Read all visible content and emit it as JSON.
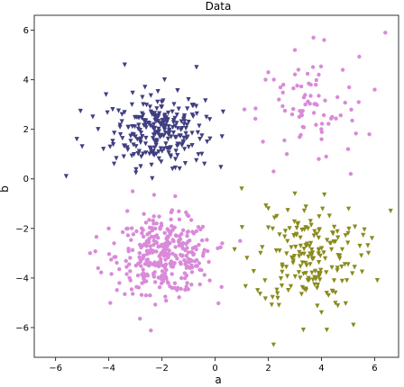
{
  "chart_data": {
    "type": "scatter",
    "title": "Data",
    "xlabel": "a",
    "ylabel": "b",
    "xlim": [
      -6.8,
      6.9
    ],
    "ylim": [
      -7.2,
      6.6
    ],
    "xticks": [
      -6,
      -4,
      -2,
      0,
      2,
      4,
      6
    ],
    "yticks": [
      -6,
      -4,
      -2,
      0,
      2,
      4,
      6
    ],
    "xtick_labels": [
      "−6",
      "−4",
      "−2",
      "0",
      "2",
      "4",
      "6"
    ],
    "ytick_labels": [
      "−6",
      "−4",
      "−2",
      "0",
      "2",
      "4",
      "6"
    ],
    "grid": false,
    "series": [
      {
        "marker": "triangle-down",
        "color": "#3f3f80",
        "center": [
          -2.1,
          1.9
        ],
        "spread": [
          0.85,
          0.72
        ],
        "points": [
          [
            -5.6,
            0.1
          ],
          [
            -5.2,
            1.6
          ],
          [
            -5.0,
            1.3
          ],
          [
            -4.6,
            2.5
          ],
          [
            -4.2,
            1.2
          ],
          [
            -4.1,
            3.4
          ],
          [
            -3.8,
            0.6
          ],
          [
            -3.5,
            2.6
          ],
          [
            -3.4,
            4.6
          ],
          [
            -3.1,
            1.8
          ],
          [
            -2.7,
            3.0
          ],
          [
            -2.3,
            2.2
          ],
          [
            -2.0,
            2.9
          ],
          [
            -1.9,
            4.0
          ],
          [
            -1.6,
            0.4
          ],
          [
            -1.2,
            1.5
          ],
          [
            -1.0,
            3.2
          ],
          [
            -0.7,
            4.5
          ],
          [
            -0.5,
            1.0
          ],
          [
            -0.2,
            2.4
          ],
          [
            0.3,
            2.7
          ],
          [
            -0.4,
            0.6
          ],
          [
            -2.8,
            0.5
          ],
          [
            -4.4,
            2.0
          ]
        ]
      },
      {
        "marker": "circle",
        "color": "#d98ad9",
        "center": [
          -1.9,
          -3.1
        ],
        "spread": [
          0.9,
          0.75
        ],
        "points": [
          [
            -4.4,
            -3.6
          ],
          [
            -4.0,
            -2.0
          ],
          [
            -3.6,
            -4.2
          ],
          [
            -3.3,
            -1.3
          ],
          [
            -3.1,
            -0.5
          ],
          [
            -2.6,
            -4.7
          ],
          [
            -2.2,
            -1.8
          ],
          [
            -1.8,
            -2.6
          ],
          [
            -1.4,
            -4.4
          ],
          [
            -1.0,
            -1.5
          ],
          [
            -0.6,
            -3.4
          ],
          [
            -0.2,
            -4.1
          ],
          [
            0.1,
            -2.8
          ],
          [
            -4.7,
            -3.0
          ],
          [
            -1.5,
            -0.7
          ],
          [
            -2.9,
            -3.9
          ],
          [
            -0.8,
            -2.2
          ],
          [
            -3.8,
            -2.6
          ]
        ]
      },
      {
        "marker": "circle",
        "color": "#d98ad9",
        "center": [
          3.5,
          2.8
        ],
        "spread": [
          0.95,
          1.05
        ],
        "points": [
          [
            1.1,
            2.8
          ],
          [
            1.8,
            1.5
          ],
          [
            2.0,
            4.3
          ],
          [
            2.4,
            3.2
          ],
          [
            2.7,
            1.0
          ],
          [
            3.0,
            5.2
          ],
          [
            3.3,
            2.1
          ],
          [
            3.6,
            3.8
          ],
          [
            3.9,
            0.8
          ],
          [
            4.1,
            5.6
          ],
          [
            4.4,
            2.5
          ],
          [
            4.8,
            4.4
          ],
          [
            5.1,
            0.2
          ],
          [
            5.4,
            3.1
          ],
          [
            5.8,
            1.8
          ],
          [
            6.4,
            5.9
          ],
          [
            6.0,
            3.6
          ],
          [
            5.0,
            1.2
          ],
          [
            2.2,
            0.3
          ],
          [
            3.7,
            5.7
          ],
          [
            4.6,
            3.3
          ],
          [
            2.9,
            2.6
          ]
        ]
      },
      {
        "marker": "triangle-down",
        "color": "#8a8a1e",
        "center": [
          3.5,
          -3.1
        ],
        "spread": [
          0.95,
          1.05
        ],
        "points": [
          [
            1.0,
            -0.4
          ],
          [
            1.2,
            -3.2
          ],
          [
            1.6,
            -4.5
          ],
          [
            2.0,
            -1.2
          ],
          [
            2.2,
            -6.7
          ],
          [
            2.4,
            -5.1
          ],
          [
            2.8,
            -2.0
          ],
          [
            3.0,
            -0.6
          ],
          [
            3.2,
            -4.0
          ],
          [
            3.6,
            -2.6
          ],
          [
            4.0,
            -5.4
          ],
          [
            4.3,
            -1.5
          ],
          [
            4.6,
            -3.6
          ],
          [
            5.0,
            -2.2
          ],
          [
            5.2,
            -5.9
          ],
          [
            5.5,
            -3.1
          ],
          [
            5.9,
            -2.4
          ],
          [
            6.1,
            -4.1
          ],
          [
            6.6,
            -1.3
          ],
          [
            4.2,
            -6.1
          ],
          [
            2.3,
            -2.9
          ],
          [
            3.4,
            -3.4
          ]
        ]
      }
    ]
  }
}
